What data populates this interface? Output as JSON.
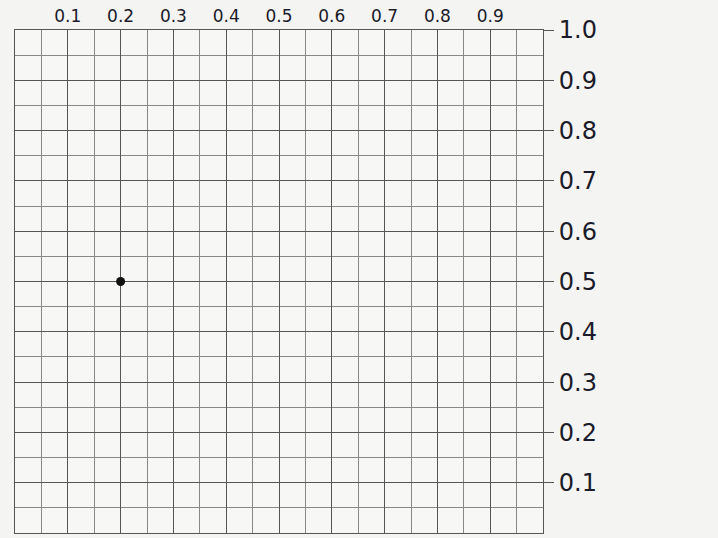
{
  "chart_data": {
    "type": "scatter",
    "x": [
      0.2
    ],
    "values": [
      0.5
    ],
    "color": "#111111",
    "marker": "circle",
    "xlim": [
      0,
      1
    ],
    "xticks": [
      0.1,
      0.2,
      0.3,
      0.4,
      0.5,
      0.6,
      0.7,
      0.8,
      0.9
    ],
    "ylim": [
      0,
      1
    ],
    "yticks": [
      0.1,
      0.2,
      0.3,
      0.4,
      0.5,
      0.6,
      0.7,
      0.8,
      0.9,
      {
        "value": 1,
        "label": "1.0"
      }
    ],
    "grid": true
  }
}
